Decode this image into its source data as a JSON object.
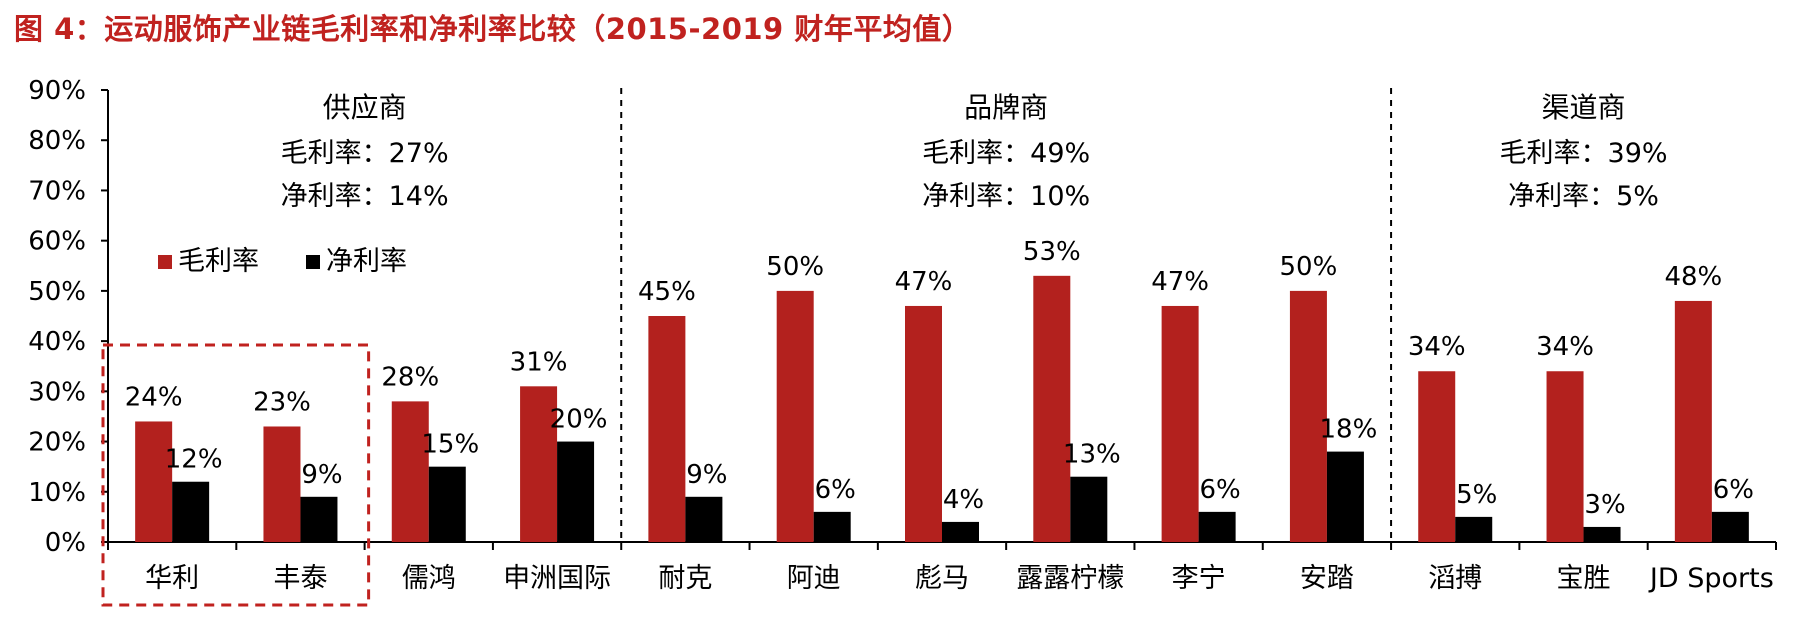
{
  "figure_title": "图 4：运动服饰产业链毛利率和净利率比较（2015-2019 财年平均值）",
  "colors": {
    "gross": "#b3211e",
    "net": "#000000",
    "title": "#c0221f",
    "highlight_box": "#c0221f"
  },
  "groups": [
    {
      "name": "供应商",
      "gross_summary": "毛利率：27%",
      "net_summary": "净利率：14%"
    },
    {
      "name": "品牌商",
      "gross_summary": "毛利率：49%",
      "net_summary": "净利率：10%"
    },
    {
      "name": "渠道商",
      "gross_summary": "毛利率：39%",
      "net_summary": "净利率：5%"
    }
  ],
  "chart_data": {
    "type": "bar",
    "categories": [
      "华利",
      "丰泰",
      "儒鸿",
      "申洲国际",
      "耐克",
      "阿迪",
      "彪马",
      "露露柠檬",
      "李宁",
      "安踏",
      "滔搏",
      "宝胜",
      "JD Sports"
    ],
    "series": [
      {
        "name": "毛利率",
        "values": [
          24,
          23,
          28,
          31,
          45,
          50,
          47,
          53,
          47,
          50,
          34,
          34,
          48
        ]
      },
      {
        "name": "净利率",
        "values": [
          12,
          9,
          15,
          20,
          9,
          6,
          4,
          13,
          6,
          18,
          5,
          3,
          6
        ]
      }
    ],
    "data_labels": [
      [
        "24%",
        "23%",
        "28%",
        "31%",
        "45%",
        "50%",
        "47%",
        "53%",
        "47%",
        "50%",
        "34%",
        "34%",
        "48%"
      ],
      [
        "12%",
        "9%",
        "15%",
        "20%",
        "9%",
        "6%",
        "4%",
        "13%",
        "6%",
        "18%",
        "5%",
        "3%",
        "6%"
      ]
    ],
    "y_ticks": [
      "0%",
      "10%",
      "20%",
      "30%",
      "40%",
      "50%",
      "60%",
      "70%",
      "80%",
      "90%"
    ],
    "ylim": [
      0,
      90
    ],
    "legend": [
      "毛利率",
      "净利率"
    ],
    "group_separators_after": [
      "申洲国际",
      "安踏"
    ],
    "highlighted_categories": [
      "华利",
      "丰泰"
    ],
    "grid": false
  }
}
